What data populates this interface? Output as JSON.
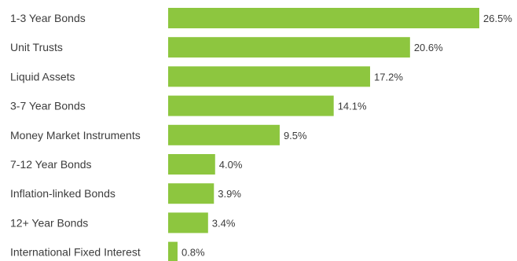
{
  "chart_data": {
    "type": "bar",
    "orientation": "horizontal",
    "categories": [
      "1-3 Year Bonds",
      "Unit Trusts",
      "Liquid Assets",
      "3-7 Year Bonds",
      "Money Market Instruments",
      "7-12 Year Bonds",
      "Inflation-linked Bonds",
      "12+ Year Bonds",
      "International Fixed Interest"
    ],
    "values": [
      26.5,
      20.6,
      17.2,
      14.1,
      9.5,
      4.0,
      3.9,
      3.4,
      0.8
    ],
    "value_labels": [
      "26.5%",
      "20.6%",
      "17.2%",
      "14.1%",
      "9.5%",
      "4.0%",
      "3.9%",
      "3.4%",
      "0.8%"
    ],
    "xlim": [
      0,
      26.5
    ],
    "grid": false,
    "legend": "none",
    "colors": {
      "bar": "#8dc63f",
      "text": "#3c3c3c"
    }
  }
}
